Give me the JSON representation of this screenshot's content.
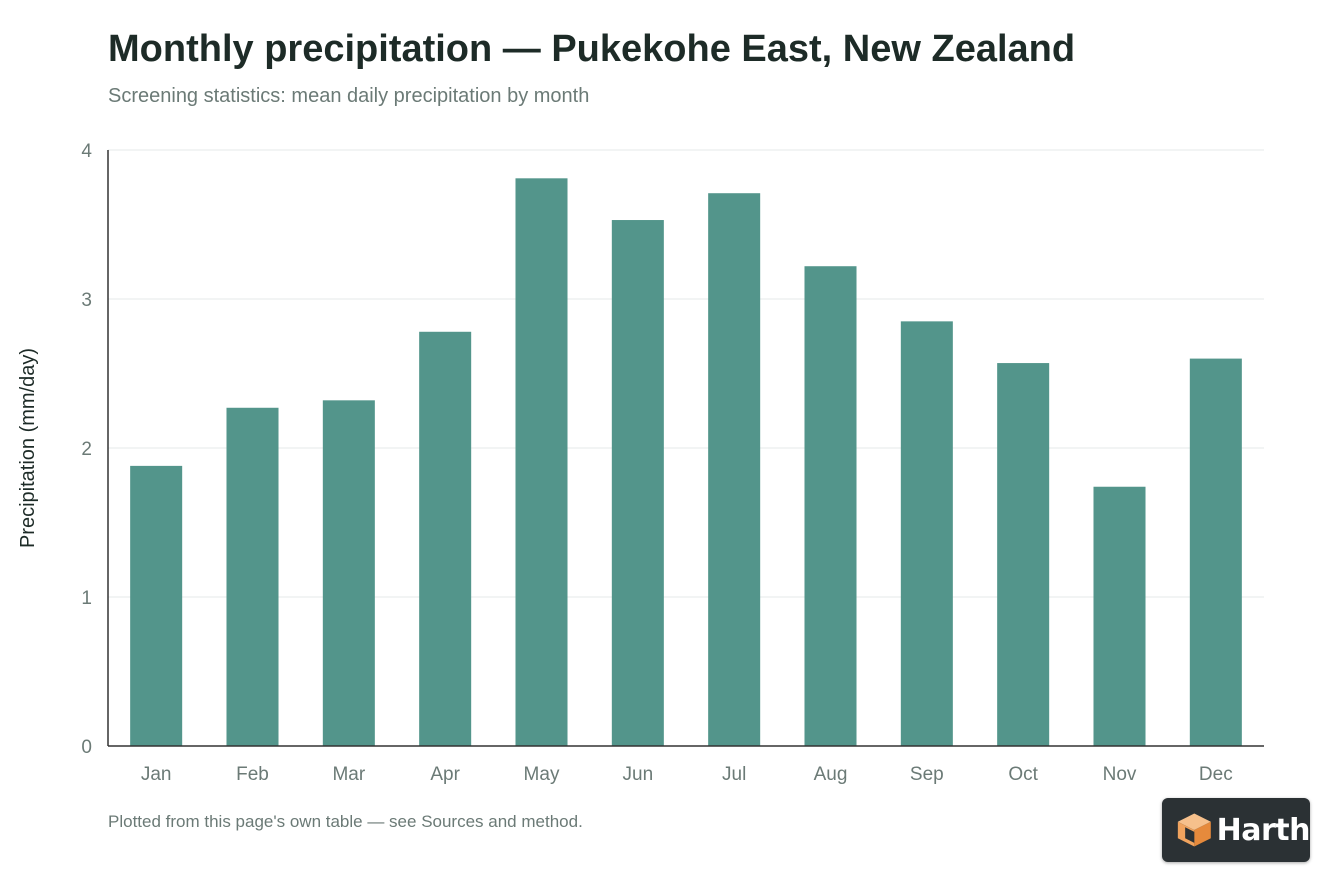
{
  "chart_data": {
    "type": "bar",
    "title": "Monthly precipitation — Pukekohe East, New Zealand",
    "subtitle": "Screening statistics: mean daily precipitation by month",
    "ylabel": "Precipitation (mm/day)",
    "xlabel": "",
    "categories": [
      "Jan",
      "Feb",
      "Mar",
      "Apr",
      "May",
      "Jun",
      "Jul",
      "Aug",
      "Sep",
      "Oct",
      "Nov",
      "Dec"
    ],
    "values": [
      1.88,
      2.27,
      2.32,
      2.78,
      3.81,
      3.53,
      3.71,
      3.22,
      2.85,
      2.57,
      1.74,
      2.6
    ],
    "ylim": [
      0,
      4
    ],
    "yticks": [
      0,
      1,
      2,
      3,
      4
    ],
    "grid": true,
    "bar_color": "#53958b"
  },
  "footer": {
    "note": "Plotted from this page's own table — see Sources and method."
  },
  "logo": {
    "icon": "harth-cube-icon",
    "text": "Harth"
  },
  "colors": {
    "title": "#1d2b27",
    "muted": "#6b7a76",
    "axis": "#333333",
    "grid": "#e6e9e8",
    "logo_bg": "#2b3134",
    "logo_accent": "#f0a35e"
  }
}
